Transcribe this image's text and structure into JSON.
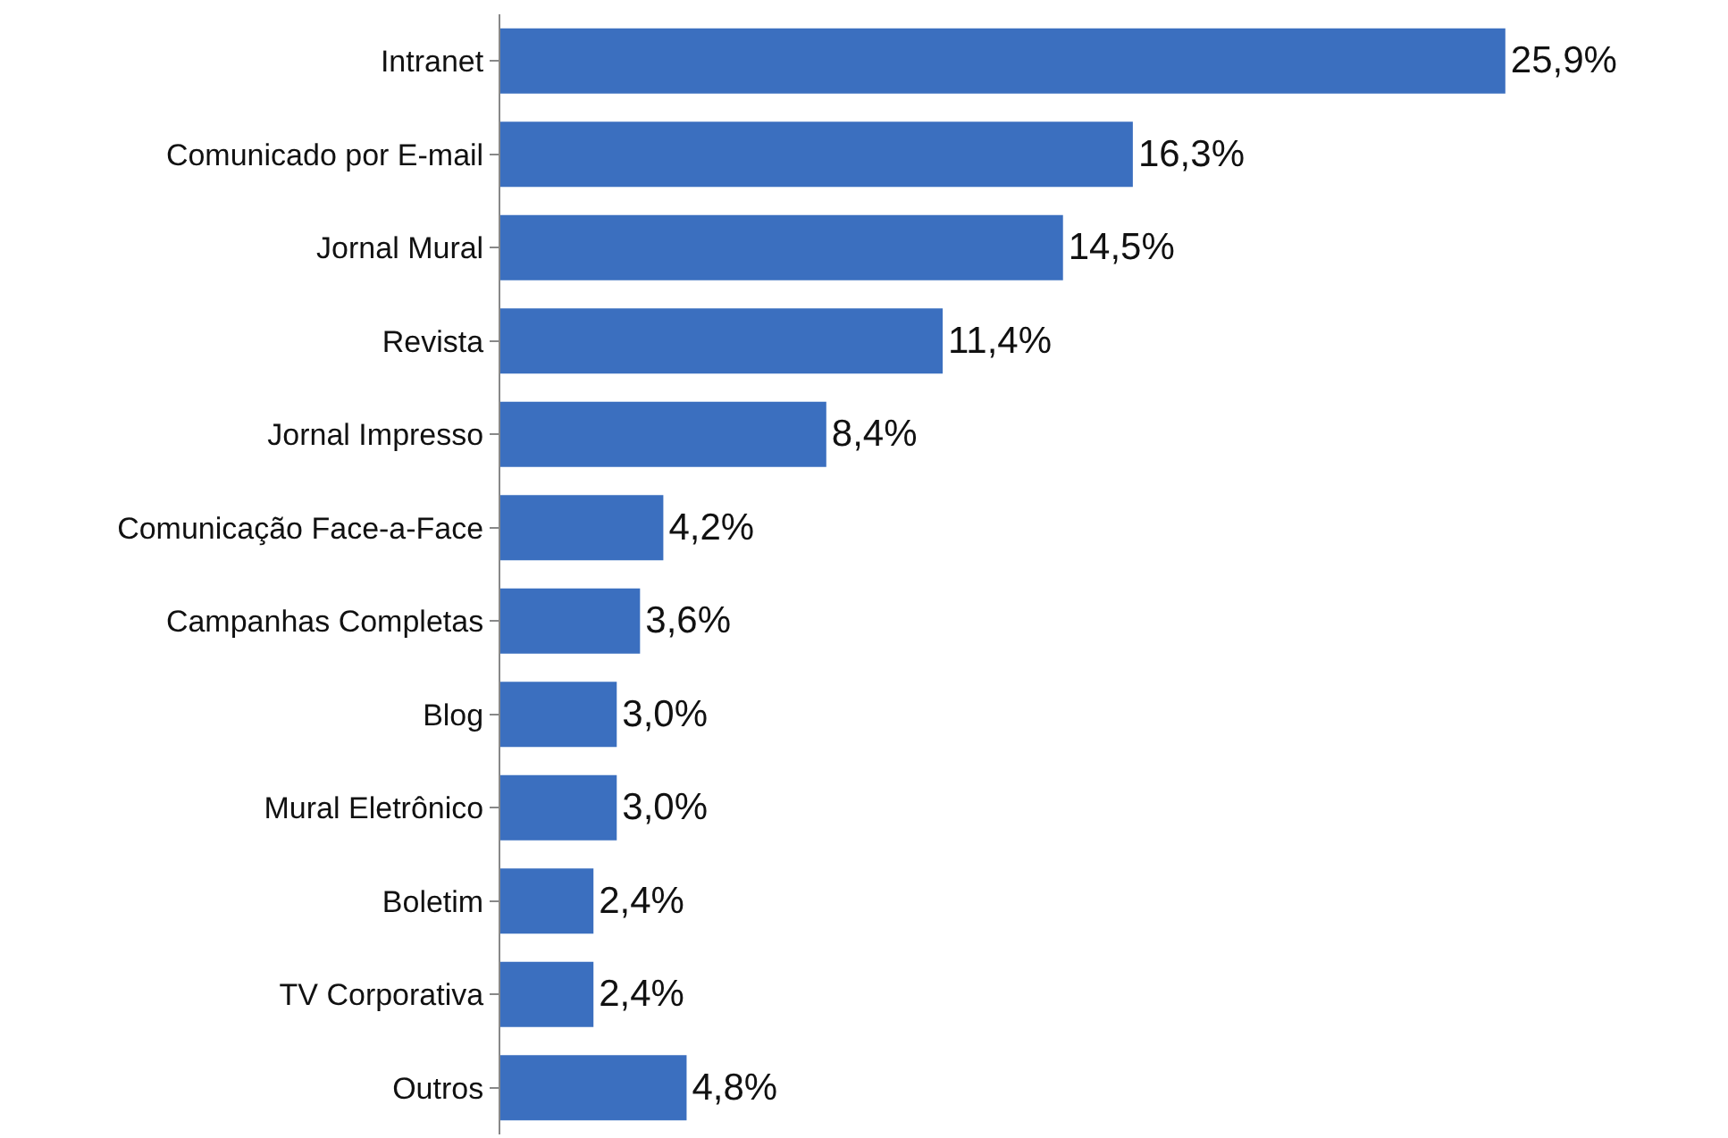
{
  "chart_data": {
    "type": "bar",
    "orientation": "horizontal",
    "categories": [
      "Intranet",
      "Comunicado por E-mail",
      "Jornal Mural",
      "Revista",
      "Jornal Impresso",
      "Comunicação Face-a-Face",
      "Campanhas Completas",
      "Blog",
      "Mural Eletrônico",
      "Boletim",
      "TV Corporativa",
      "Outros"
    ],
    "values": [
      25.9,
      16.3,
      14.5,
      11.4,
      8.4,
      4.2,
      3.6,
      3.0,
      3.0,
      2.4,
      2.4,
      4.8
    ],
    "value_labels": [
      "25,9%",
      "16,3%",
      "14,5%",
      "11,4%",
      "8,4%",
      "4,2%",
      "3,6%",
      "3,0%",
      "3,0%",
      "2,4%",
      "2,4%",
      "4,8%"
    ],
    "color": "#3b6fbf"
  }
}
